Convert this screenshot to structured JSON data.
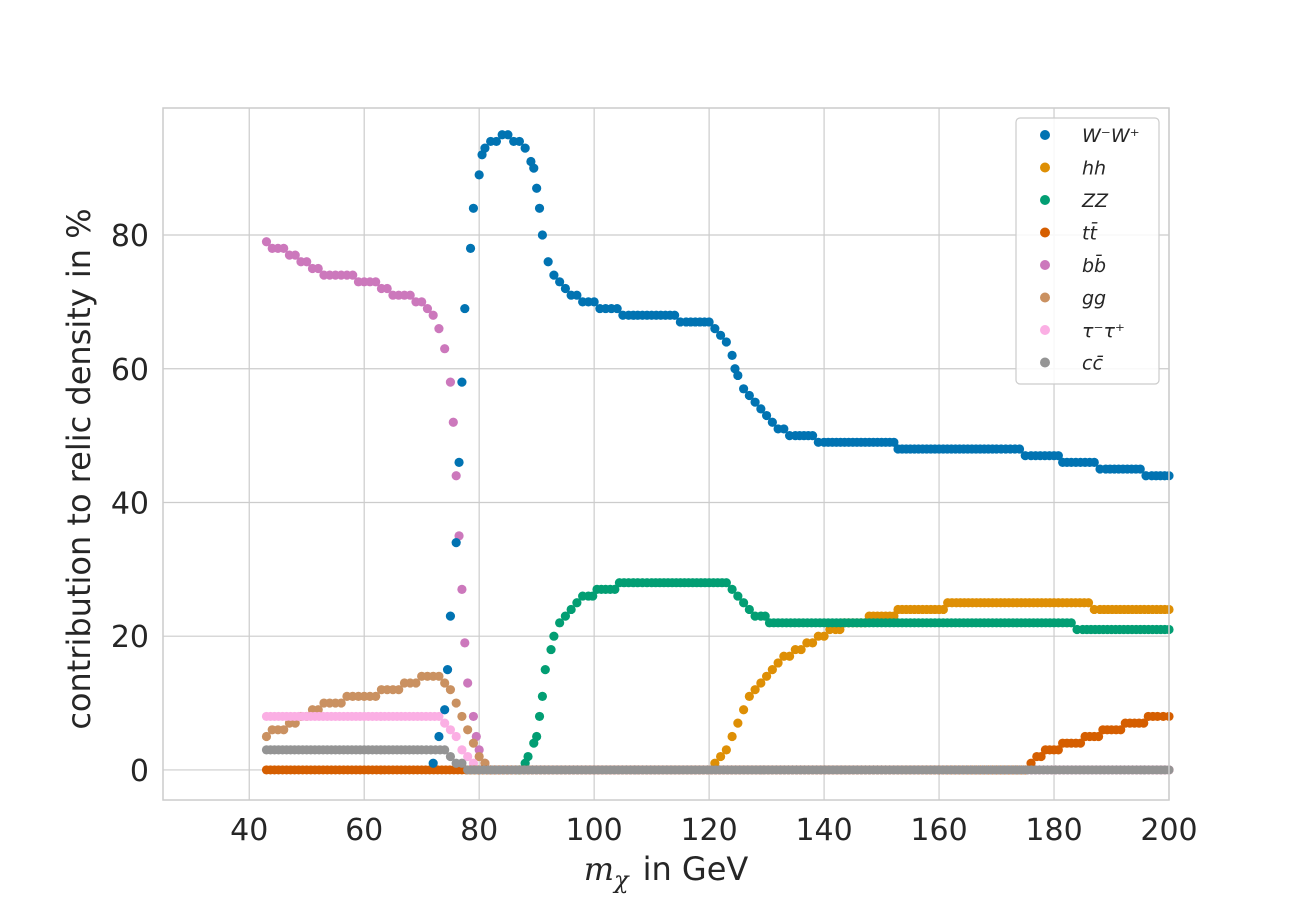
{
  "chart_data": {
    "type": "scatter",
    "xlabel_math": "m",
    "xlabel_sub": "χ",
    "xlabel_text": "in GeV",
    "ylabel": "contribution to relic density in %",
    "xlim": [
      25,
      200
    ],
    "ylim": [
      -4.5,
      99
    ],
    "xticks": [
      40,
      60,
      80,
      100,
      120,
      140,
      160,
      180,
      200
    ],
    "yticks": [
      0,
      20,
      40,
      60,
      80
    ],
    "grid": true,
    "legend_position": "top-right",
    "series": [
      {
        "name": "W⁻W⁺",
        "color": "#0173b2",
        "points": [
          [
            72,
            1
          ],
          [
            73,
            5
          ],
          [
            74,
            9
          ],
          [
            74.5,
            15
          ],
          [
            75,
            23
          ],
          [
            76,
            34
          ],
          [
            76.5,
            46
          ],
          [
            77,
            58
          ],
          [
            77.5,
            69
          ],
          [
            78.5,
            78
          ],
          [
            79,
            84
          ],
          [
            80,
            89
          ],
          [
            80.5,
            92
          ],
          [
            81,
            93
          ],
          [
            82,
            94
          ],
          [
            83,
            94
          ],
          [
            84,
            95
          ],
          [
            85,
            95
          ],
          [
            86,
            94
          ],
          [
            87,
            94
          ],
          [
            88,
            93
          ],
          [
            89,
            91
          ],
          [
            89.5,
            90
          ],
          [
            90,
            87
          ],
          [
            90.5,
            84
          ],
          [
            91,
            80
          ],
          [
            92,
            76
          ],
          [
            93,
            74
          ],
          [
            94,
            73
          ],
          [
            95,
            72
          ],
          [
            96,
            71
          ],
          [
            97,
            71
          ],
          [
            98,
            70
          ],
          [
            100,
            70
          ],
          [
            102,
            69
          ],
          [
            104,
            69
          ],
          [
            106,
            68
          ],
          [
            110,
            68
          ],
          [
            114,
            68
          ],
          [
            116,
            67
          ],
          [
            120,
            67
          ],
          [
            121,
            66
          ],
          [
            122,
            65
          ],
          [
            123,
            64
          ],
          [
            124,
            62
          ],
          [
            124.5,
            60
          ],
          [
            125,
            59
          ],
          [
            126,
            57
          ],
          [
            127,
            56
          ],
          [
            128,
            55
          ],
          [
            129,
            54
          ],
          [
            130,
            53
          ],
          [
            131,
            52
          ],
          [
            133,
            51
          ],
          [
            135,
            50
          ],
          [
            138,
            50
          ],
          [
            140,
            49
          ],
          [
            145,
            49
          ],
          [
            150,
            49
          ],
          [
            155,
            48
          ],
          [
            160,
            48
          ],
          [
            165,
            48
          ],
          [
            170,
            48
          ],
          [
            174,
            48
          ],
          [
            176,
            47
          ],
          [
            180,
            47
          ],
          [
            183,
            46
          ],
          [
            187,
            46
          ],
          [
            189,
            45
          ],
          [
            192,
            45
          ],
          [
            195,
            45
          ],
          [
            197,
            44
          ],
          [
            200,
            44
          ]
        ]
      },
      {
        "name": "hh",
        "color": "#de8f05",
        "points": [
          [
            121,
            1
          ],
          [
            122,
            2
          ],
          [
            123,
            3
          ],
          [
            124,
            5
          ],
          [
            125,
            7
          ],
          [
            126,
            9
          ],
          [
            127,
            11
          ],
          [
            128,
            12
          ],
          [
            129,
            13
          ],
          [
            130,
            14
          ],
          [
            131,
            15
          ],
          [
            132,
            16
          ],
          [
            134,
            17
          ],
          [
            136,
            18
          ],
          [
            138,
            19
          ],
          [
            140,
            20
          ],
          [
            142,
            21
          ],
          [
            145,
            22
          ],
          [
            150,
            23
          ],
          [
            155,
            24
          ],
          [
            160,
            24
          ],
          [
            163,
            25
          ],
          [
            170,
            25
          ],
          [
            180,
            25
          ],
          [
            186,
            25
          ],
          [
            188,
            24
          ],
          [
            195,
            24
          ],
          [
            200,
            24
          ]
        ]
      },
      {
        "name": "ZZ",
        "color": "#029e73",
        "points": [
          [
            87,
            0
          ],
          [
            88,
            1
          ],
          [
            88.5,
            2
          ],
          [
            89.5,
            4
          ],
          [
            90,
            5
          ],
          [
            90.5,
            8
          ],
          [
            91,
            11
          ],
          [
            91.5,
            15
          ],
          [
            92.5,
            18
          ],
          [
            93,
            20
          ],
          [
            94,
            22
          ],
          [
            95,
            23
          ],
          [
            96,
            24
          ],
          [
            97,
            25
          ],
          [
            99,
            26
          ],
          [
            102,
            27
          ],
          [
            106,
            28
          ],
          [
            110,
            28
          ],
          [
            115,
            28
          ],
          [
            120,
            28
          ],
          [
            123,
            28
          ],
          [
            124,
            27
          ],
          [
            125,
            26
          ],
          [
            126,
            25
          ],
          [
            127,
            24
          ],
          [
            129,
            23
          ],
          [
            132,
            22
          ],
          [
            140,
            22
          ],
          [
            150,
            22
          ],
          [
            160,
            22
          ],
          [
            170,
            22
          ],
          [
            180,
            22
          ],
          [
            183,
            22
          ],
          [
            185,
            21
          ],
          [
            190,
            21
          ],
          [
            200,
            21
          ]
        ]
      },
      {
        "name": "tt̄",
        "color": "#d55e00",
        "points": [
          [
            43,
            0
          ],
          [
            50,
            0
          ],
          [
            60,
            0
          ],
          [
            70,
            0
          ],
          [
            77,
            0
          ],
          [
            100,
            0
          ],
          [
            150,
            0
          ],
          [
            175,
            0
          ],
          [
            176,
            1
          ],
          [
            177,
            2
          ],
          [
            180,
            3
          ],
          [
            183,
            4
          ],
          [
            187,
            5
          ],
          [
            190,
            6
          ],
          [
            194,
            7
          ],
          [
            198,
            8
          ],
          [
            200,
            8
          ]
        ]
      },
      {
        "name": "bb̄",
        "color": "#cc78bc",
        "points": [
          [
            43,
            79
          ],
          [
            44,
            78
          ],
          [
            46,
            78
          ],
          [
            48,
            77
          ],
          [
            50,
            76
          ],
          [
            52,
            75
          ],
          [
            54,
            74
          ],
          [
            56,
            74
          ],
          [
            58,
            74
          ],
          [
            60,
            73
          ],
          [
            62,
            73
          ],
          [
            64,
            72
          ],
          [
            66,
            71
          ],
          [
            68,
            71
          ],
          [
            70,
            70
          ],
          [
            71,
            69
          ],
          [
            72,
            68
          ],
          [
            73,
            66
          ],
          [
            74,
            63
          ],
          [
            75,
            58
          ],
          [
            75.5,
            52
          ],
          [
            76,
            44
          ],
          [
            76.5,
            35
          ],
          [
            77,
            27
          ],
          [
            77.5,
            19
          ],
          [
            78,
            13
          ],
          [
            79,
            8
          ],
          [
            79.5,
            5
          ],
          [
            80,
            3
          ],
          [
            81,
            1
          ],
          [
            82,
            0
          ],
          [
            90,
            0
          ],
          [
            100,
            0
          ],
          [
            150,
            0
          ],
          [
            200,
            0
          ]
        ]
      },
      {
        "name": "gg",
        "color": "#ca9161",
        "points": [
          [
            43,
            5
          ],
          [
            44,
            6
          ],
          [
            46,
            6
          ],
          [
            48,
            7
          ],
          [
            50,
            8
          ],
          [
            52,
            9
          ],
          [
            54,
            10
          ],
          [
            56,
            10
          ],
          [
            58,
            11
          ],
          [
            60,
            11
          ],
          [
            62,
            11
          ],
          [
            64,
            12
          ],
          [
            66,
            12
          ],
          [
            67,
            13
          ],
          [
            69,
            13
          ],
          [
            70,
            14
          ],
          [
            72,
            14
          ],
          [
            73,
            14
          ],
          [
            74,
            13
          ],
          [
            75,
            12
          ],
          [
            76,
            10
          ],
          [
            77,
            8
          ],
          [
            78,
            6
          ],
          [
            79,
            4
          ],
          [
            80,
            2
          ],
          [
            81,
            1
          ],
          [
            82,
            0
          ],
          [
            90,
            0
          ],
          [
            150,
            0
          ],
          [
            200,
            0
          ]
        ]
      },
      {
        "name": "τ⁻τ⁺",
        "color": "#fbafe4",
        "points": [
          [
            43,
            8
          ],
          [
            50,
            8
          ],
          [
            60,
            8
          ],
          [
            70,
            8
          ],
          [
            73,
            8
          ],
          [
            74,
            7
          ],
          [
            75,
            6
          ],
          [
            76,
            5
          ],
          [
            77,
            3
          ],
          [
            78,
            2
          ],
          [
            79,
            1
          ],
          [
            80,
            0
          ],
          [
            90,
            0
          ],
          [
            150,
            0
          ],
          [
            200,
            0
          ]
        ]
      },
      {
        "name": "cc̄",
        "color": "#949494",
        "points": [
          [
            43,
            3
          ],
          [
            50,
            3
          ],
          [
            60,
            3
          ],
          [
            70,
            3
          ],
          [
            74,
            3
          ],
          [
            75,
            2
          ],
          [
            77,
            1
          ],
          [
            78,
            0
          ],
          [
            90,
            0
          ],
          [
            100,
            0
          ],
          [
            150,
            0
          ],
          [
            200,
            0
          ]
        ]
      }
    ]
  }
}
